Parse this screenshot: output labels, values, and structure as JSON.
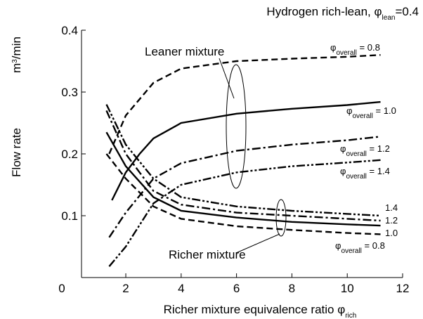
{
  "chart_data": {
    "type": "line",
    "title": [
      "Hydrogen rich-lean, φ",
      "lean",
      "=0.4"
    ],
    "xlabel": [
      "Richer mixture equivalence ratio  φ",
      "rich"
    ],
    "ylabel": "Flow rate",
    "yunit": [
      "m",
      "3",
      "/min"
    ],
    "annotations": [
      "Leaner mixture",
      "Richer mixture"
    ],
    "xlim": [
      0.4,
      12
    ],
    "ylim": [
      0,
      0.4
    ],
    "xticks": [
      2,
      4,
      6,
      8,
      10,
      12
    ],
    "yticks": [
      0,
      0.1,
      0.2,
      0.3,
      0.4
    ],
    "grid": false,
    "series": [
      {
        "name": [
          "φ",
          "overall",
          " = 0.8"
        ],
        "color": "#000000",
        "dash": "9,5",
        "x": [
          1.4,
          2,
          3,
          4,
          6,
          8,
          10,
          11.2
        ],
        "values": [
          0.2,
          0.262,
          0.315,
          0.338,
          0.35,
          0.354,
          0.357,
          0.36
        ]
      },
      {
        "name": [
          "φ",
          "overall",
          " = 1.0"
        ],
        "color": "#000000",
        "dash": "none",
        "x": [
          1.5,
          2,
          2.5,
          3,
          4,
          6,
          8,
          10,
          11.2
        ],
        "values": [
          0.125,
          0.17,
          0.2,
          0.225,
          0.25,
          0.265,
          0.273,
          0.279,
          0.284
        ]
      },
      {
        "name": [
          "φ",
          "overall",
          " = 1.2"
        ],
        "color": "#000000",
        "dash": "12,4,3,4",
        "x": [
          1.4,
          2,
          3,
          4,
          6,
          8,
          10,
          11.2
        ],
        "values": [
          0.065,
          0.105,
          0.16,
          0.185,
          0.205,
          0.215,
          0.222,
          0.228
        ]
      },
      {
        "name": [
          "φ",
          "overall",
          " = 1.4"
        ],
        "color": "#000000",
        "dash": "12,3,3,3,3,3",
        "x": [
          1.4,
          2,
          3,
          4,
          6,
          8,
          10,
          11.2
        ],
        "values": [
          0.018,
          0.05,
          0.12,
          0.15,
          0.17,
          0.18,
          0.186,
          0.19
        ]
      },
      {
        "name": [
          "φ",
          "overall",
          " = 0.8"
        ],
        "color": "#000000",
        "dash": "9,5",
        "x": [
          1.3,
          2,
          3,
          4,
          6,
          8,
          10,
          11.2
        ],
        "values": [
          0.2,
          0.16,
          0.115,
          0.095,
          0.083,
          0.077,
          0.072,
          0.07
        ]
      },
      {
        "name": [
          "1.0"
        ],
        "color": "#000000",
        "dash": "none",
        "x": [
          1.3,
          2,
          3,
          4,
          6,
          8,
          10,
          11.2
        ],
        "values": [
          0.235,
          0.18,
          0.13,
          0.108,
          0.097,
          0.09,
          0.086,
          0.084
        ]
      },
      {
        "name": [
          "1.2"
        ],
        "color": "#000000",
        "dash": "12,4,3,4",
        "x": [
          1.3,
          2,
          3,
          4,
          6,
          8,
          10,
          11.2
        ],
        "values": [
          0.27,
          0.2,
          0.14,
          0.118,
          0.105,
          0.1,
          0.095,
          0.092
        ]
      },
      {
        "name": [
          "1.4"
        ],
        "color": "#000000",
        "dash": "12,3,3,3,3,3",
        "x": [
          1.3,
          2,
          3,
          4,
          6,
          8,
          10,
          11.2
        ],
        "values": [
          0.28,
          0.215,
          0.16,
          0.13,
          0.115,
          0.108,
          0.103,
          0.1
        ]
      }
    ]
  }
}
